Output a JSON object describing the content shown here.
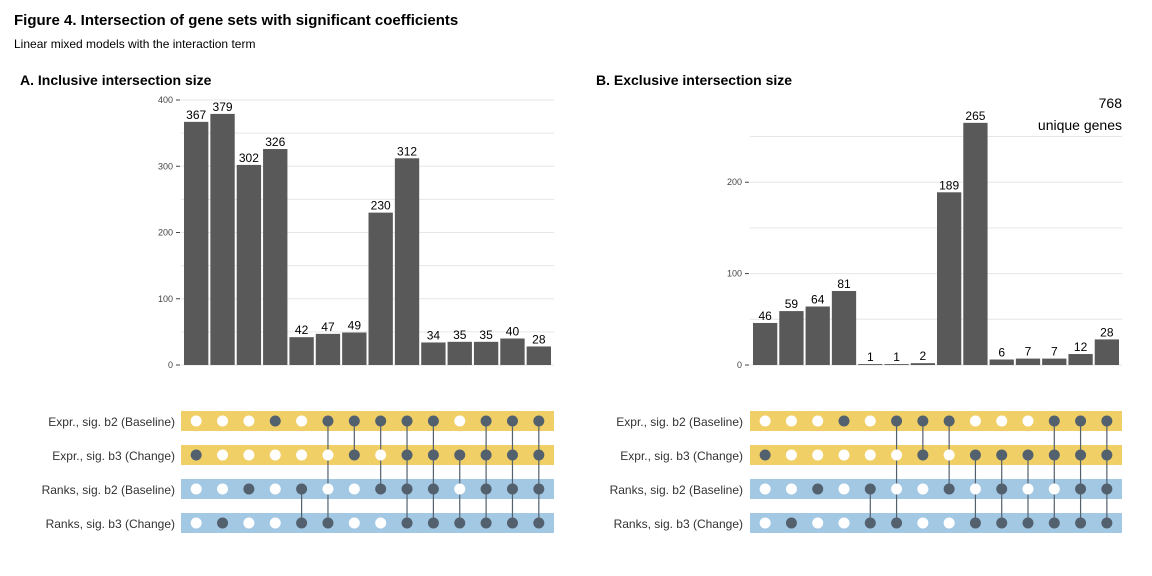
{
  "figure": {
    "title": "Figure 4. Intersection of gene sets with significant coefficients",
    "subtitle": "Linear mixed models with the interaction term"
  },
  "colors": {
    "bar": "#595959",
    "band_yellow": "#F0CF66",
    "band_blue": "#A3C8E4",
    "dot_filled": "#53606E",
    "dot_empty": "#FFFFFF",
    "grid": "#E6E6E6"
  },
  "chart_data": [
    {
      "type": "bar",
      "title": "A. Inclusive intersection size",
      "ylim": [
        0,
        400
      ],
      "yticks": [
        0,
        100,
        200,
        300,
        400
      ],
      "grid": true,
      "values": [
        367,
        379,
        302,
        326,
        42,
        47,
        49,
        230,
        312,
        34,
        35,
        35,
        40,
        28
      ],
      "set_labels": [
        "Expr., sig. b2 (Baseline)",
        "Expr., sig. b3 (Change)",
        "Ranks, sig. b2 (Baseline)",
        "Ranks, sig. b3 (Change)"
      ],
      "set_bands": [
        "yellow",
        "yellow",
        "blue",
        "blue"
      ],
      "matrix": [
        [
          0,
          1,
          0,
          0
        ],
        [
          0,
          0,
          0,
          1
        ],
        [
          0,
          0,
          1,
          0
        ],
        [
          1,
          0,
          0,
          0
        ],
        [
          0,
          0,
          1,
          1
        ],
        [
          1,
          0,
          0,
          1
        ],
        [
          1,
          1,
          0,
          0
        ],
        [
          1,
          0,
          1,
          0
        ],
        [
          1,
          1,
          1,
          1
        ],
        [
          1,
          1,
          1,
          1
        ],
        [
          0,
          1,
          0,
          1
        ],
        [
          1,
          1,
          1,
          1
        ],
        [
          1,
          1,
          1,
          1
        ],
        [
          1,
          1,
          1,
          1
        ]
      ]
    },
    {
      "type": "bar",
      "title": "B. Exclusive intersection size",
      "ylim": [
        0,
        290
      ],
      "yticks": [
        0,
        100,
        200
      ],
      "grid": true,
      "annotation": [
        "768",
        "unique genes"
      ],
      "values": [
        46,
        59,
        64,
        81,
        1,
        1,
        2,
        189,
        265,
        6,
        7,
        7,
        12,
        28
      ],
      "set_labels": [
        "Expr., sig. b2 (Baseline)",
        "Expr., sig. b3 (Change)",
        "Ranks, sig. b2 (Baseline)",
        "Ranks, sig. b3 (Change)"
      ],
      "set_bands": [
        "yellow",
        "yellow",
        "blue",
        "blue"
      ],
      "matrix": [
        [
          0,
          1,
          0,
          0
        ],
        [
          0,
          0,
          0,
          1
        ],
        [
          0,
          0,
          1,
          0
        ],
        [
          1,
          0,
          0,
          0
        ],
        [
          0,
          0,
          1,
          1
        ],
        [
          1,
          0,
          0,
          1
        ],
        [
          1,
          1,
          0,
          0
        ],
        [
          1,
          0,
          1,
          0
        ],
        [
          0,
          1,
          0,
          1
        ],
        [
          0,
          1,
          1,
          1
        ],
        [
          0,
          1,
          0,
          1
        ],
        [
          1,
          1,
          0,
          1
        ],
        [
          1,
          1,
          1,
          1
        ],
        [
          1,
          1,
          1,
          1
        ]
      ]
    }
  ]
}
